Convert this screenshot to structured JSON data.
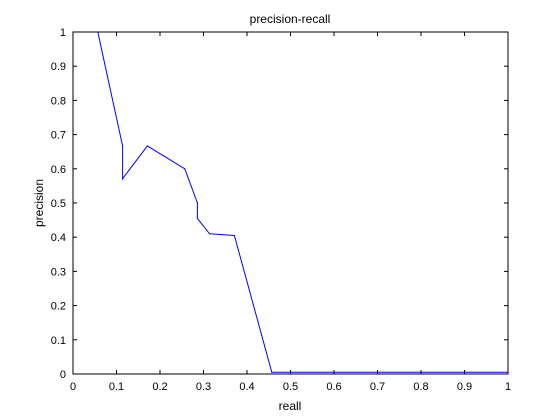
{
  "chart_data": {
    "type": "line",
    "title": "precision-recall",
    "xlabel": "reall",
    "ylabel": "precision",
    "xlim": [
      0,
      1
    ],
    "ylim": [
      0,
      1
    ],
    "grid": false,
    "legend": null,
    "x_ticks": [
      "0",
      "0.1",
      "0.2",
      "0.3",
      "0.4",
      "0.5",
      "0.6",
      "0.7",
      "0.8",
      "0.9",
      "1"
    ],
    "y_ticks": [
      "0",
      "0.1",
      "0.2",
      "0.3",
      "0.4",
      "0.5",
      "0.6",
      "0.7",
      "0.8",
      "0.9",
      "1"
    ],
    "series": [
      {
        "color": "#0000ff",
        "x": [
          0.057,
          0.114,
          0.114,
          0.171,
          0.257,
          0.286,
          0.286,
          0.314,
          0.371,
          0.457,
          1.0
        ],
        "y": [
          1.0,
          0.667,
          0.571,
          0.667,
          0.6,
          0.5,
          0.455,
          0.41,
          0.405,
          0.005,
          0.005
        ]
      }
    ]
  }
}
